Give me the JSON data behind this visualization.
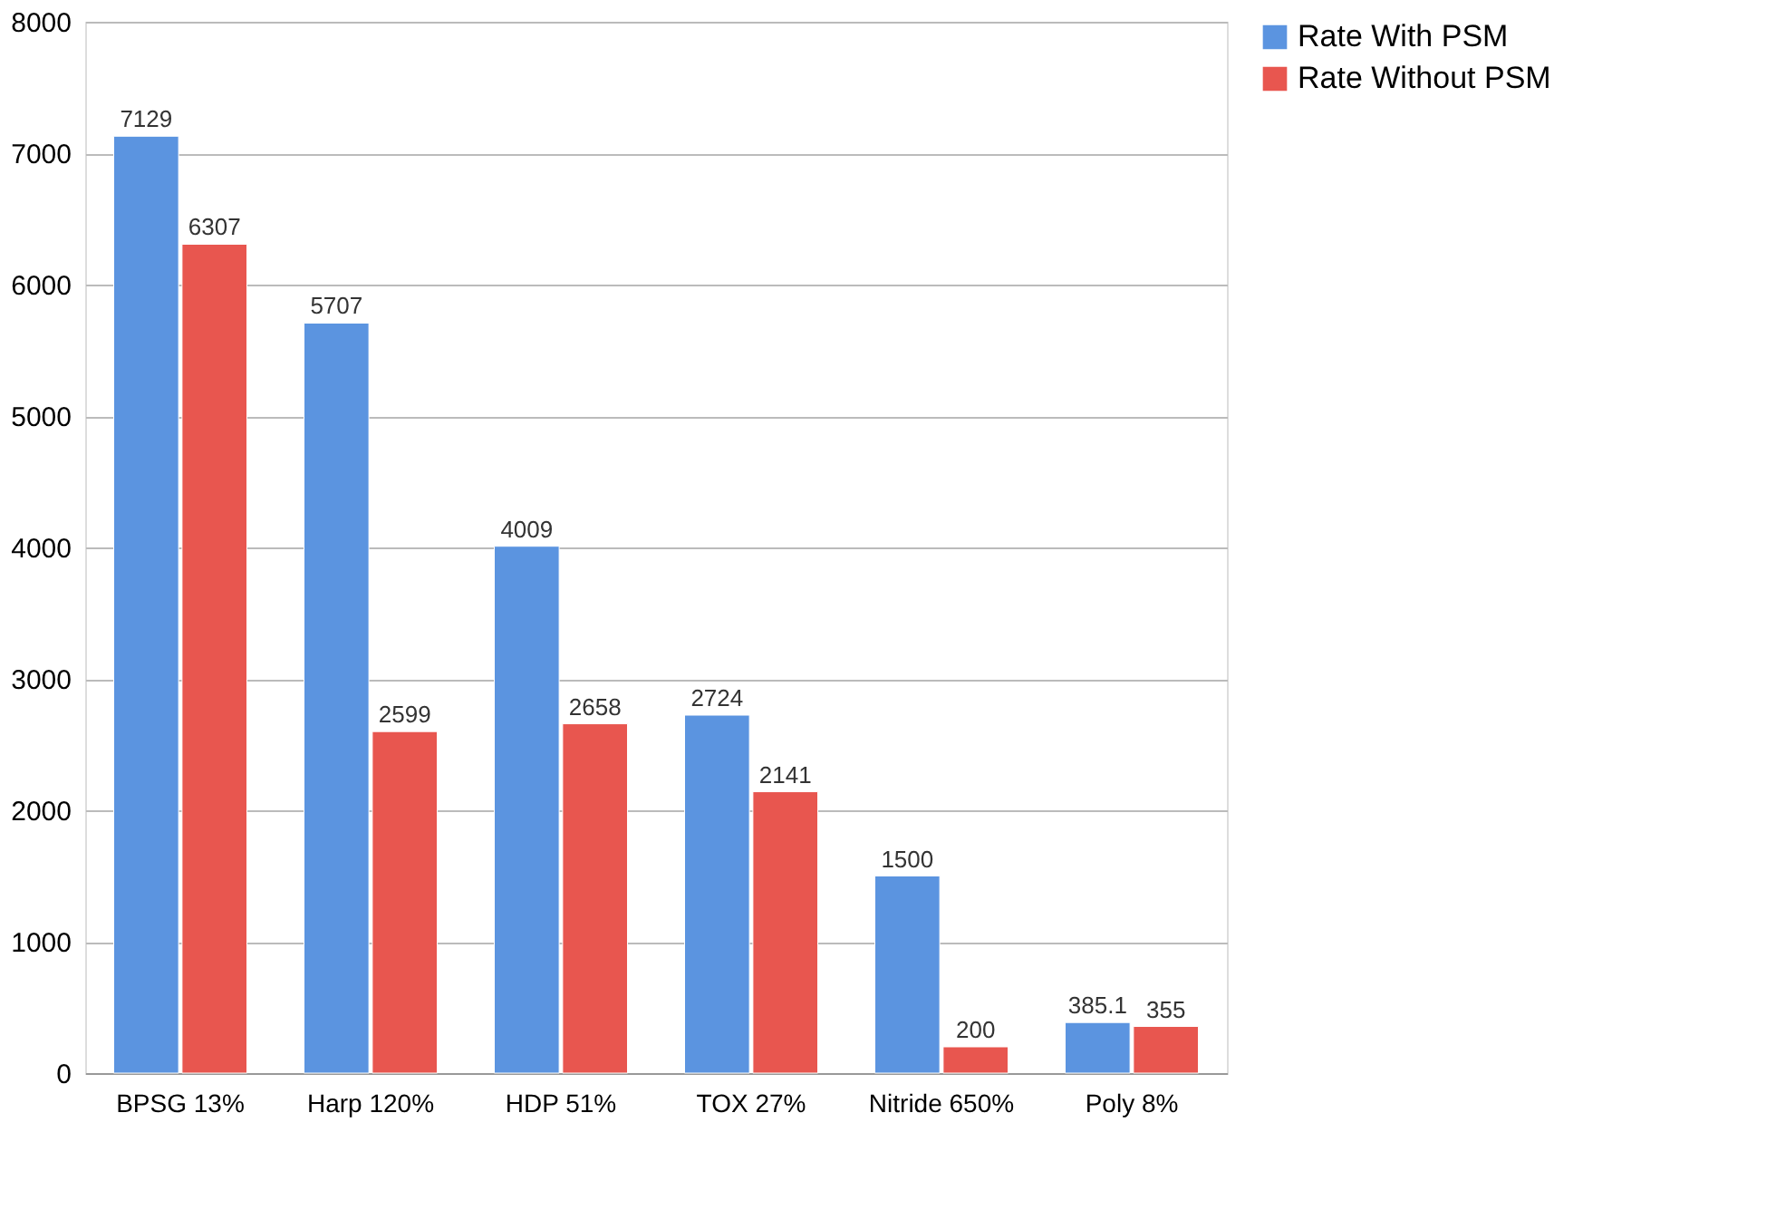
{
  "chart_data": {
    "type": "bar",
    "categories": [
      "BPSG 13%",
      "Harp 120%",
      "HDP 51%",
      "TOX 27%",
      "Nitride 650%",
      "Poly 8%"
    ],
    "series": [
      {
        "name": "Rate With PSM",
        "color": "#5b94e0",
        "values": [
          7129,
          5707,
          4009,
          2724,
          1500,
          385.1
        ]
      },
      {
        "name": "Rate Without PSM",
        "color": "#e8564f",
        "values": [
          6307,
          2599,
          2658,
          2141,
          200,
          355
        ]
      }
    ],
    "ylim": [
      0,
      8000
    ],
    "yticks": [
      0,
      1000,
      2000,
      3000,
      4000,
      5000,
      6000,
      7000,
      8000
    ],
    "grid": "y",
    "legend": "right",
    "data_labels": true
  }
}
